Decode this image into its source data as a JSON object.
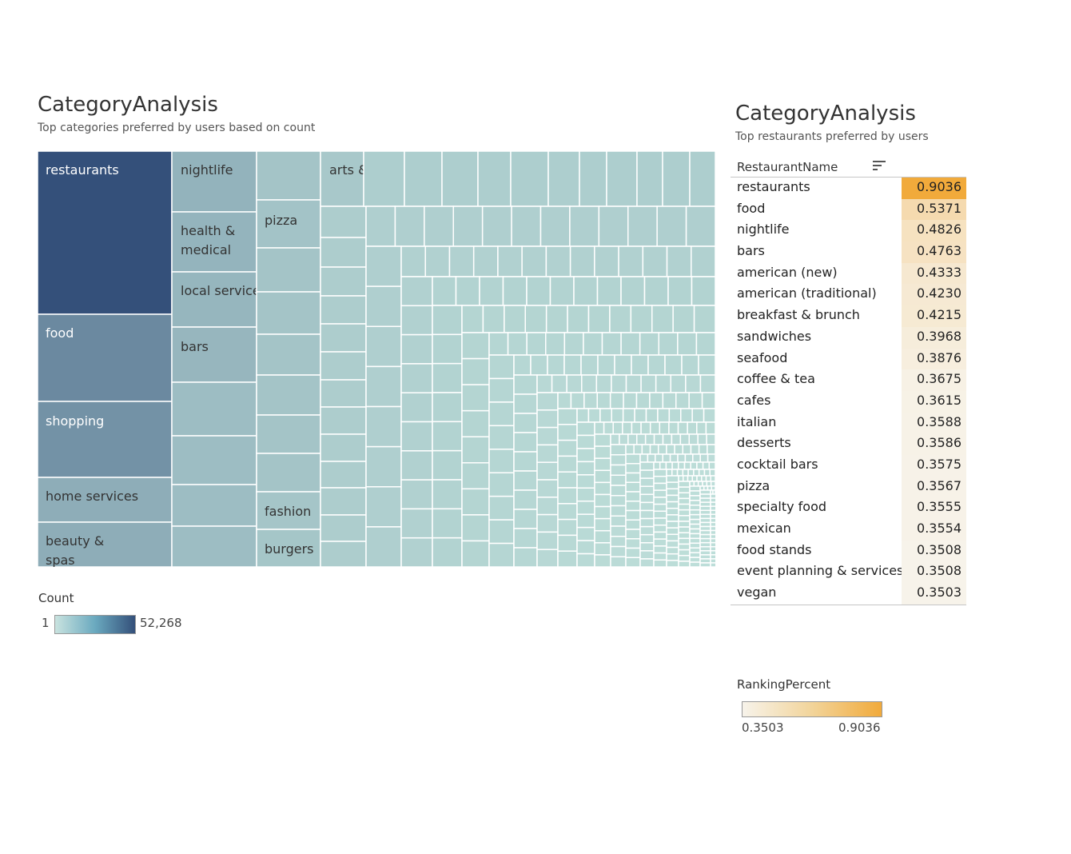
{
  "left_panel": {
    "title": "CategoryAnalysis",
    "subtitle": "Top categories preferred by users based on count"
  },
  "right_panel": {
    "title": "CategoryAnalysis",
    "subtitle": "Top restaurants preferred by users"
  },
  "count_legend": {
    "title": "Count",
    "min": "1",
    "max": "52,268"
  },
  "ranking_legend": {
    "title": "RankingPercent",
    "min": "0.3503",
    "max": "0.9036"
  },
  "colors": {
    "treemap_low": "#bfe0da",
    "treemap_high": "#34507a",
    "rank_low": "#f7f3ea",
    "rank_high": "#f1aa3b"
  },
  "chart_data": [
    {
      "type": "treemap",
      "title": "CategoryAnalysis",
      "subtitle": "Top categories preferred by users based on count",
      "color_metric": "Count",
      "color_range": [
        1,
        52268
      ],
      "labeled_cells": [
        {
          "label": "restaurants",
          "value": 52268
        },
        {
          "label": "food",
          "value": 27781
        },
        {
          "label": "shopping",
          "value": 24395
        },
        {
          "label": "home services",
          "value": 14356
        },
        {
          "label": "beauty & spas",
          "value": 14292
        },
        {
          "label": "nightlife",
          "value": 12281
        },
        {
          "label": "health & medical",
          "value": 11890
        },
        {
          "label": "local services",
          "value": 11198
        },
        {
          "label": "bars",
          "value": 11065
        },
        {
          "label": "pizza",
          "value": 7000
        },
        {
          "label": "fashion",
          "value": 6500
        },
        {
          "label": "burgers",
          "value": 6300
        },
        {
          "label": "arts &",
          "value": 5500
        }
      ]
    },
    {
      "type": "table",
      "title": "CategoryAnalysis",
      "subtitle": "Top restaurants preferred by users",
      "columns": [
        "RestaurantName",
        "RankingPercent"
      ],
      "rows": [
        {
          "name": "restaurants",
          "value": "0.9036"
        },
        {
          "name": "food",
          "value": "0.5371"
        },
        {
          "name": "nightlife",
          "value": "0.4826"
        },
        {
          "name": "bars",
          "value": "0.4763"
        },
        {
          "name": "american (new)",
          "value": "0.4333"
        },
        {
          "name": "american (traditional)",
          "value": "0.4230"
        },
        {
          "name": "breakfast & brunch",
          "value": "0.4215"
        },
        {
          "name": "sandwiches",
          "value": "0.3968"
        },
        {
          "name": "seafood",
          "value": "0.3876"
        },
        {
          "name": "coffee & tea",
          "value": "0.3675"
        },
        {
          "name": "cafes",
          "value": "0.3615"
        },
        {
          "name": "italian",
          "value": "0.3588"
        },
        {
          "name": "desserts",
          "value": "0.3586"
        },
        {
          "name": "cocktail bars",
          "value": "0.3575"
        },
        {
          "name": "pizza",
          "value": "0.3567"
        },
        {
          "name": "specialty food",
          "value": "0.3555"
        },
        {
          "name": "mexican",
          "value": "0.3554"
        },
        {
          "name": "food stands",
          "value": "0.3508"
        },
        {
          "name": "event planning & services",
          "value": "0.3508"
        },
        {
          "name": "vegan",
          "value": "0.3503"
        }
      ]
    }
  ]
}
